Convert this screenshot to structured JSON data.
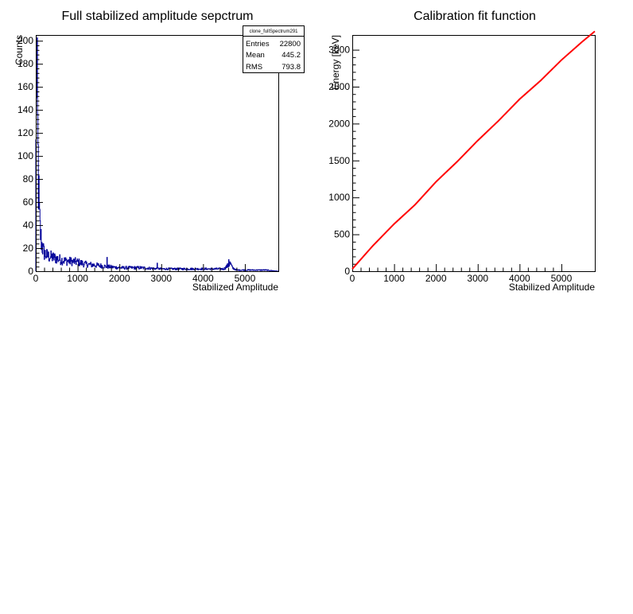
{
  "chart_data": [
    {
      "type": "bar",
      "title": "Full stabilized amplitude sepctrum",
      "xlabel": "Stabilized Amplitude",
      "ylabel": "Counts",
      "xlim": [
        0,
        5800
      ],
      "ylim": [
        0,
        205
      ],
      "x_ticks": [
        0,
        1000,
        2000,
        3000,
        4000,
        5000
      ],
      "y_ticks": [
        0,
        20,
        40,
        60,
        80,
        100,
        120,
        140,
        160,
        180,
        200
      ],
      "x_tick_labels": [
        "0",
        "1000",
        "2000",
        "3000",
        "4000",
        "5000"
      ],
      "y_tick_labels": [
        "0",
        "20",
        "40",
        "60",
        "80",
        "100",
        "120",
        "140",
        "160",
        "180",
        "200"
      ],
      "color": "#000099",
      "bin_width": 10,
      "envelope": {
        "x": [
          0,
          10,
          20,
          30,
          40,
          50,
          60,
          70,
          80,
          90,
          100,
          120,
          150,
          200,
          250,
          300,
          400,
          500,
          700,
          1000,
          1200,
          1500,
          1700,
          2000,
          2500,
          3000,
          3500,
          4000,
          4500,
          4600,
          4650,
          4700,
          4800,
          5000,
          5200,
          5500,
          5800
        ],
        "y": [
          10,
          190,
          175,
          150,
          130,
          105,
          85,
          68,
          55,
          45,
          38,
          30,
          22,
          16,
          14,
          13,
          12,
          11,
          9,
          8,
          6,
          5,
          4,
          3,
          3,
          2,
          2,
          2,
          2,
          5,
          7,
          3,
          1,
          1,
          1,
          1,
          0
        ]
      },
      "spikes": [
        {
          "x": 1700,
          "y": 12
        },
        {
          "x": 2900,
          "y": 7
        },
        {
          "x": 4610,
          "y": 10
        }
      ]
    },
    {
      "type": "line",
      "title": "Calibration fit function",
      "xlabel": "Stabilized Amplitude",
      "ylabel": "Energy [keV]",
      "xlim": [
        0,
        5800
      ],
      "ylim": [
        0,
        3200
      ],
      "x_ticks": [
        0,
        1000,
        2000,
        3000,
        4000,
        5000
      ],
      "y_ticks": [
        0,
        500,
        1000,
        1500,
        2000,
        2500,
        3000
      ],
      "x_tick_labels": [
        "0",
        "1000",
        "2000",
        "3000",
        "4000",
        "5000"
      ],
      "y_tick_labels": [
        "0",
        "500",
        "1000",
        "1500",
        "2000",
        "2500",
        "3000"
      ],
      "color": "#ff0000",
      "series": [
        {
          "x": [
            0,
            500,
            1000,
            1500,
            2000,
            2500,
            3000,
            3500,
            4000,
            4500,
            5000,
            5500,
            5800
          ],
          "y": [
            30,
            350,
            640,
            900,
            1210,
            1480,
            1770,
            2040,
            2330,
            2580,
            2860,
            3110,
            3250
          ]
        }
      ]
    }
  ],
  "stats_box": {
    "name": "clone_fullSpectrum291",
    "rows": [
      {
        "label": "Entries",
        "value": "22800"
      },
      {
        "label": "Mean",
        "value": "445.2"
      },
      {
        "label": "RMS",
        "value": "793.8"
      }
    ]
  }
}
